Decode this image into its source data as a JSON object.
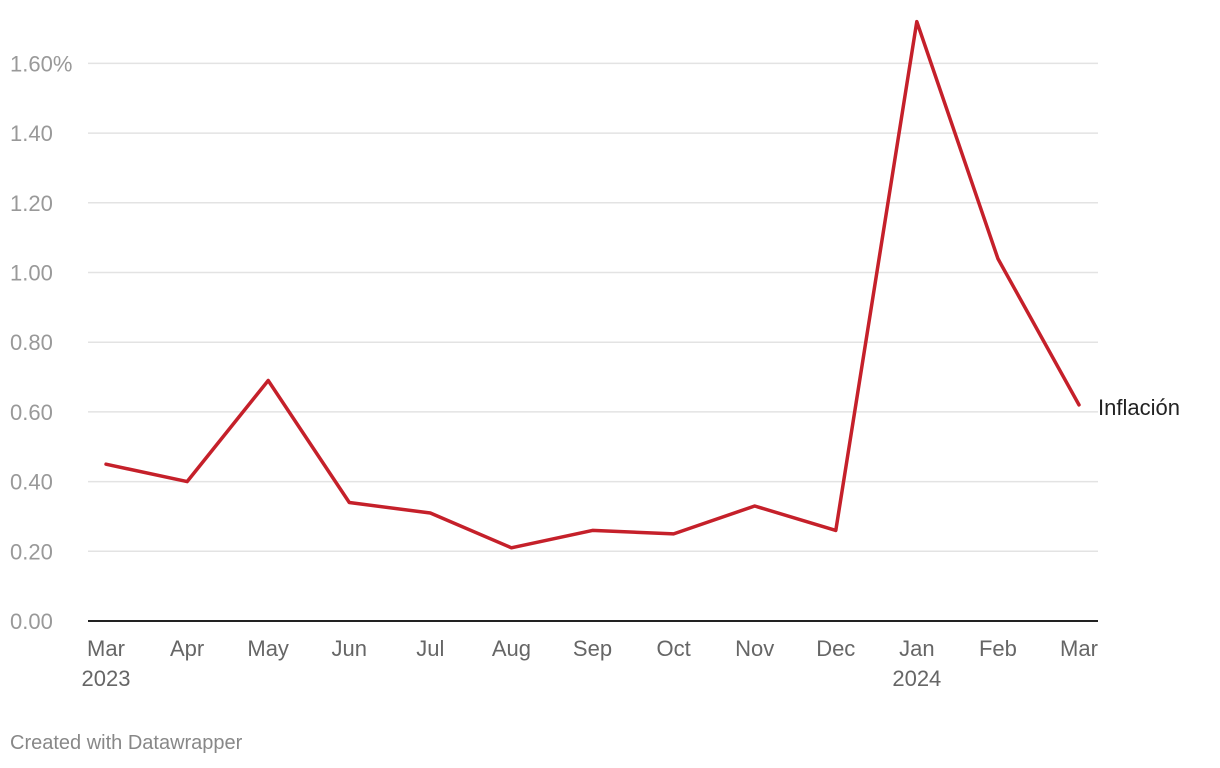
{
  "chart_data": {
    "type": "line",
    "categories": [
      "Mar",
      "Apr",
      "May",
      "Jun",
      "Jul",
      "Aug",
      "Sep",
      "Oct",
      "Nov",
      "Dec",
      "Jan",
      "Feb",
      "Mar"
    ],
    "year_labels": [
      "2023",
      "",
      "",
      "",
      "",
      "",
      "",
      "",
      "",
      "",
      "2024",
      "",
      ""
    ],
    "series": [
      {
        "name": "Inflación",
        "color": "#c5202a",
        "values": [
          0.45,
          0.4,
          0.69,
          0.34,
          0.31,
          0.21,
          0.26,
          0.25,
          0.33,
          0.26,
          1.72,
          1.04,
          0.62
        ]
      }
    ],
    "y_ticks": [
      0,
      0.2,
      0.4,
      0.6,
      0.8,
      1.0,
      1.2,
      1.4,
      1.6
    ],
    "y_tick_labels": [
      "0.00",
      "0.20",
      "0.40",
      "0.60",
      "0.80",
      "1.00",
      "1.20",
      "1.40",
      "1.60%"
    ],
    "ylim": [
      0,
      1.72
    ],
    "grid": true,
    "title": "",
    "xlabel": "",
    "ylabel": ""
  },
  "footer": {
    "credit": "Created with Datawrapper"
  }
}
